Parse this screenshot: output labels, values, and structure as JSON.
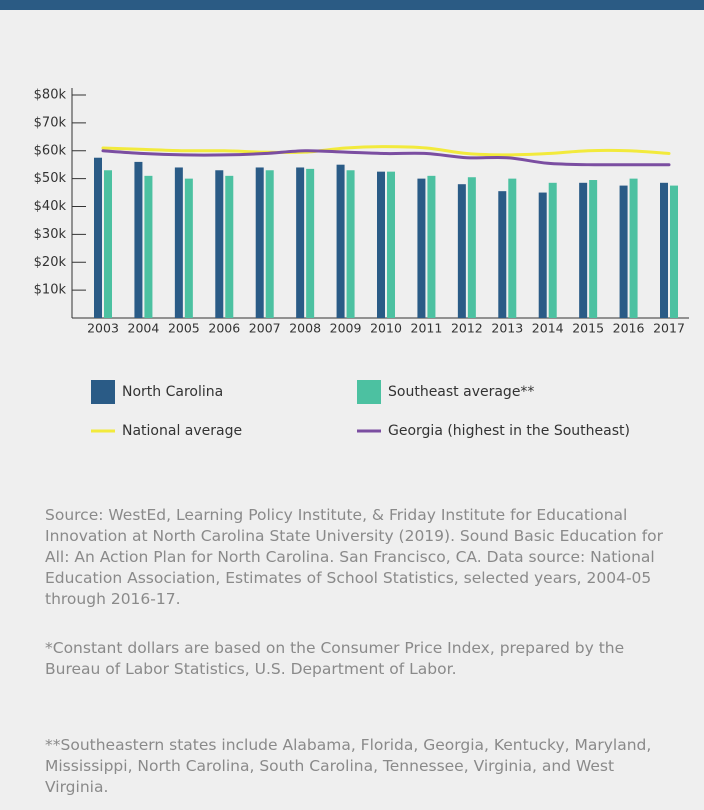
{
  "chart_data": {
    "type": "bar",
    "categories": [
      "2003",
      "2004",
      "2005",
      "2006",
      "2007",
      "2008",
      "2009",
      "2010",
      "2011",
      "2012",
      "2013",
      "2014",
      "2015",
      "2016",
      "2017"
    ],
    "series": [
      {
        "name": "North Carolina",
        "color": "#2a5b86",
        "type": "bar",
        "values": [
          57500,
          56000,
          54000,
          53000,
          54000,
          54000,
          55000,
          52500,
          50000,
          48000,
          45500,
          45000,
          48500,
          47500,
          48500
        ]
      },
      {
        "name": "Southeast average**",
        "color": "#4cc1a1",
        "type": "bar",
        "values": [
          53000,
          51000,
          50000,
          51000,
          53000,
          53500,
          53000,
          52500,
          51000,
          50500,
          50000,
          48500,
          49500,
          50000,
          47500
        ]
      },
      {
        "name": "National average",
        "color": "#f2ea3c",
        "type": "line",
        "values": [
          61000,
          60500,
          60000,
          60000,
          59500,
          59500,
          61000,
          61500,
          61000,
          59000,
          58500,
          59000,
          60000,
          60000,
          59000
        ]
      },
      {
        "name": "Georgia (highest in the Southeast)",
        "color": "#7b4ea1",
        "type": "line",
        "values": [
          60000,
          59000,
          58500,
          58500,
          59000,
          60000,
          59500,
          59000,
          59000,
          57500,
          57500,
          55500,
          55000,
          55000,
          55000
        ]
      }
    ],
    "ylim": [
      0,
      80000
    ],
    "yticks": [
      {
        "value": 10000,
        "label": "$10k"
      },
      {
        "value": 20000,
        "label": "$20k"
      },
      {
        "value": 30000,
        "label": "$30k"
      },
      {
        "value": 40000,
        "label": "$40k"
      },
      {
        "value": 50000,
        "label": "$50k"
      },
      {
        "value": 60000,
        "label": "$60k"
      },
      {
        "value": 70000,
        "label": "$70k"
      },
      {
        "value": 80000,
        "label": "$80k"
      }
    ]
  },
  "notes": [
    "Source: WestEd, Learning Policy Institute, & Friday Institute for Educational Innovation at North Carolina State University (2019). Sound Basic Education for All: An Action Plan for North Carolina. San Francisco, CA. Data source: National Education Association, Estimates of School Statistics, selected years, 2004-05 through 2016-17.",
    "*Constant dollars are based on the Consumer Price Index, prepared by the Bureau of Labor Statistics, U.S. Department of Labor.",
    "**Southeastern states include Alabama, Florida, Georgia, Kentucky, Maryland, Mississippi, North Carolina, South Carolina, Tennessee, Virginia, and West Virginia."
  ]
}
